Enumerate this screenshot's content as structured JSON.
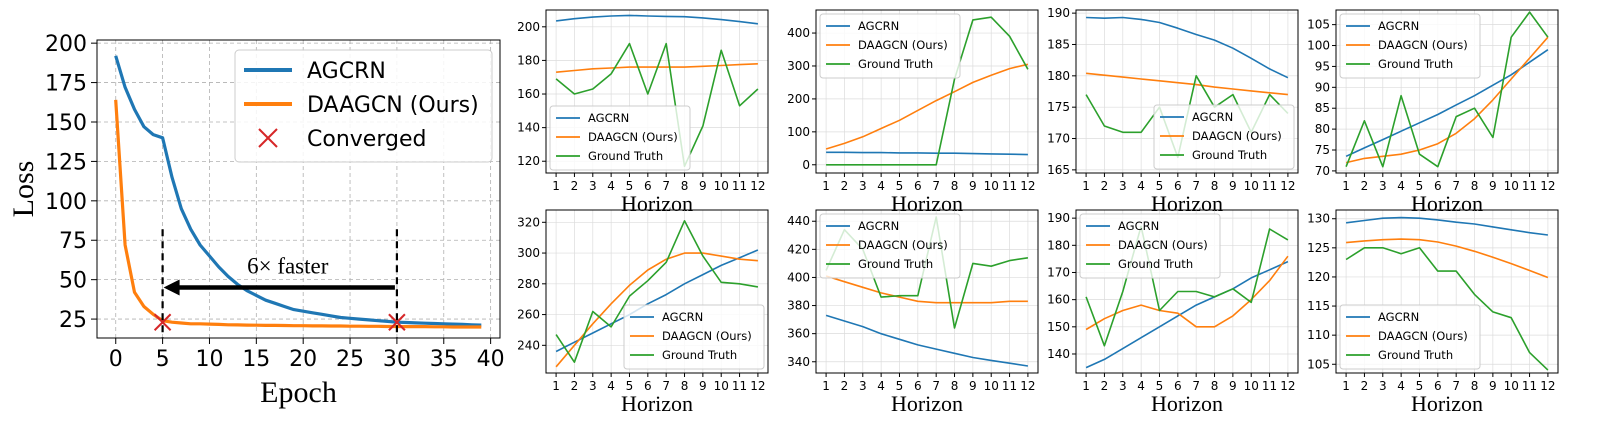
{
  "colors": {
    "agcrn": "#1f77b4",
    "daagcn": "#ff7f0e",
    "truth": "#2ca02c",
    "converged": "#d62728",
    "grid": "#b0b0b0"
  },
  "chart_data": [
    {
      "type": "line",
      "xlabel": "Epoch",
      "ylabel": "Loss",
      "xlim": [
        -2,
        41
      ],
      "ylim": [
        13,
        202
      ],
      "xticks": [
        0,
        5,
        10,
        15,
        20,
        25,
        30,
        35,
        40
      ],
      "yticks": [
        25,
        50,
        75,
        100,
        125,
        150,
        175,
        200
      ],
      "grid": "dashed",
      "legend": "top-right",
      "legend_entries": [
        "AGCRN",
        "DAAGCN (Ours)",
        "Converged"
      ],
      "x": [
        0,
        1,
        2,
        3,
        4,
        5,
        6,
        7,
        8,
        9,
        10,
        11,
        12,
        13,
        14,
        15,
        16,
        17,
        18,
        19,
        20,
        21,
        22,
        23,
        24,
        25,
        26,
        27,
        28,
        29,
        30,
        31,
        32,
        33,
        34,
        35,
        36,
        37,
        38,
        39
      ],
      "series": [
        {
          "name": "AGCRN",
          "values": [
            192,
            172,
            158,
            147,
            142,
            140,
            115,
            95,
            82,
            72,
            65,
            58,
            52,
            47,
            43,
            40,
            37,
            35,
            33,
            31,
            30,
            29,
            28,
            27,
            26,
            25.5,
            25,
            24.5,
            24,
            23.5,
            23,
            22.8,
            22.6,
            22.4,
            22.2,
            22,
            21.8,
            21.6,
            21.4,
            21.2
          ]
        },
        {
          "name": "DAAGCN (Ours)",
          "values": [
            164,
            72,
            42,
            33,
            28,
            24,
            23,
            22.5,
            22,
            22,
            21.8,
            21.6,
            21.4,
            21.3,
            21.2,
            21.1,
            21,
            21,
            20.9,
            20.8,
            20.8,
            20.7,
            20.7,
            20.6,
            20.6,
            20.5,
            20.5,
            20.4,
            20.4,
            20.3,
            20.3,
            20.2,
            20.2,
            20.2,
            20.1,
            20.1,
            20,
            20,
            20,
            20
          ]
        }
      ],
      "converged_points": [
        {
          "x": 5,
          "y": 23
        },
        {
          "x": 30,
          "y": 23
        }
      ],
      "annotation": {
        "text": "6× faster",
        "from_epoch": 30,
        "to_epoch": 5,
        "arrow_y": 45,
        "vline_top": 82
      }
    },
    {
      "type": "line",
      "xlabel": "Horizon",
      "legend": "center-left",
      "x": [
        1,
        2,
        3,
        4,
        5,
        6,
        7,
        8,
        9,
        10,
        11,
        12
      ],
      "ylim": [
        113,
        210
      ],
      "yticks": [
        120,
        140,
        160,
        180,
        200
      ],
      "series": [
        {
          "name": "AGCRN",
          "values": [
            203.5,
            204.8,
            205.8,
            206.4,
            206.8,
            206.4,
            206.2,
            206.0,
            205.3,
            204.3,
            203.1,
            201.8
          ]
        },
        {
          "name": "DAAGCN (Ours)",
          "values": [
            173,
            174,
            175,
            175.5,
            176,
            176,
            176,
            176,
            176.5,
            177,
            177.5,
            178
          ]
        },
        {
          "name": "Ground Truth",
          "values": [
            169,
            160,
            163,
            172,
            190,
            160,
            190,
            117,
            141,
            186,
            153,
            163
          ]
        }
      ]
    },
    {
      "type": "line",
      "xlabel": "Horizon",
      "legend": "top-left",
      "x": [
        1,
        2,
        3,
        4,
        5,
        6,
        7,
        8,
        9,
        10,
        11,
        12
      ],
      "ylim": [
        -25,
        470
      ],
      "yticks": [
        0,
        100,
        200,
        300,
        400
      ],
      "series": [
        {
          "name": "AGCRN",
          "values": [
            38,
            38,
            37,
            37,
            36,
            36,
            35,
            35,
            34,
            33,
            32,
            31
          ]
        },
        {
          "name": "DAAGCN (Ours)",
          "values": [
            48,
            65,
            85,
            110,
            135,
            165,
            195,
            222,
            250,
            272,
            292,
            305
          ]
        },
        {
          "name": "Ground Truth",
          "values": [
            0,
            0,
            0,
            0,
            0,
            0,
            0,
            260,
            440,
            448,
            390,
            290
          ]
        }
      ]
    },
    {
      "type": "line",
      "xlabel": "Horizon",
      "legend": "bottom-right",
      "x": [
        1,
        2,
        3,
        4,
        5,
        6,
        7,
        8,
        9,
        10,
        11,
        12
      ],
      "ylim": [
        164.5,
        190.5
      ],
      "yticks": [
        165,
        170,
        175,
        180,
        185,
        190
      ],
      "series": [
        {
          "name": "AGCRN",
          "values": [
            189.3,
            189.2,
            189.3,
            189.0,
            188.5,
            187.6,
            186.6,
            185.7,
            184.4,
            182.8,
            181.1,
            179.7
          ]
        },
        {
          "name": "DAAGCN (Ours)",
          "values": [
            180.4,
            180.1,
            179.8,
            179.5,
            179.2,
            178.9,
            178.6,
            178.2,
            177.9,
            177.6,
            177.3,
            177.0
          ]
        },
        {
          "name": "Ground Truth",
          "values": [
            177,
            172,
            171,
            171,
            175,
            167,
            180,
            175,
            177,
            171,
            177,
            174
          ]
        }
      ]
    },
    {
      "type": "line",
      "xlabel": "Horizon",
      "legend": "top-left",
      "x": [
        1,
        2,
        3,
        4,
        5,
        6,
        7,
        8,
        9,
        10,
        11,
        12
      ],
      "ylim": [
        69.5,
        108.5
      ],
      "yticks": [
        70,
        75,
        80,
        85,
        90,
        95,
        100,
        105
      ],
      "series": [
        {
          "name": "AGCRN",
          "values": [
            73.5,
            75.5,
            77.5,
            79.5,
            81.5,
            83.5,
            85.8,
            88.0,
            90.5,
            93.0,
            96.0,
            99.0
          ]
        },
        {
          "name": "DAAGCN (Ours)",
          "values": [
            72,
            73,
            73.5,
            74,
            75,
            76.5,
            79,
            82.5,
            87,
            92,
            97,
            102
          ]
        },
        {
          "name": "Ground Truth",
          "values": [
            71,
            82,
            71,
            88,
            74,
            71,
            83,
            85,
            78,
            102,
            108,
            102
          ]
        }
      ]
    },
    {
      "type": "line",
      "xlabel": "Horizon",
      "legend": "bottom-right",
      "x": [
        1,
        2,
        3,
        4,
        5,
        6,
        7,
        8,
        9,
        10,
        11,
        12
      ],
      "ylim": [
        222,
        328
      ],
      "yticks": [
        240,
        260,
        280,
        300,
        320
      ],
      "series": [
        {
          "name": "AGCRN",
          "values": [
            236,
            242,
            248,
            254,
            260,
            267,
            273,
            280,
            286,
            292,
            297,
            302
          ]
        },
        {
          "name": "DAAGCN (Ours)",
          "values": [
            226,
            240,
            254,
            267,
            279,
            289,
            296,
            300,
            300,
            298,
            296,
            295
          ]
        },
        {
          "name": "Ground Truth",
          "values": [
            247,
            229,
            262,
            252,
            272,
            282,
            294,
            321,
            298,
            281,
            280,
            278
          ]
        }
      ]
    },
    {
      "type": "line",
      "xlabel": "Horizon",
      "legend": "top-left",
      "x": [
        1,
        2,
        3,
        4,
        5,
        6,
        7,
        8,
        9,
        10,
        11,
        12
      ],
      "ylim": [
        332,
        448
      ],
      "yticks": [
        340,
        360,
        380,
        400,
        420,
        440
      ],
      "series": [
        {
          "name": "AGCRN",
          "values": [
            373,
            369,
            365,
            360,
            356,
            352,
            349,
            346,
            343,
            341,
            339,
            337
          ]
        },
        {
          "name": "DAAGCN (Ours)",
          "values": [
            401,
            397,
            393,
            389,
            386,
            383,
            382,
            382,
            382,
            382,
            383,
            383
          ]
        },
        {
          "name": "Ground Truth",
          "values": [
            405,
            434,
            420,
            386,
            387,
            387,
            443,
            364,
            410,
            408,
            412,
            414
          ]
        }
      ]
    },
    {
      "type": "line",
      "xlabel": "Horizon",
      "legend": "top-left",
      "x": [
        1,
        2,
        3,
        4,
        5,
        6,
        7,
        8,
        9,
        10,
        11,
        12
      ],
      "ylim": [
        133,
        193
      ],
      "yticks": [
        140,
        150,
        160,
        170,
        180,
        190
      ],
      "series": [
        {
          "name": "AGCRN",
          "values": [
            135,
            138,
            142,
            146,
            150,
            154,
            158,
            161,
            164,
            168,
            171,
            174
          ]
        },
        {
          "name": "DAAGCN (Ours)",
          "values": [
            149,
            153,
            156,
            158,
            156,
            155,
            150,
            150,
            154,
            160,
            167,
            176
          ]
        },
        {
          "name": "Ground Truth",
          "values": [
            161,
            143,
            163,
            187,
            156,
            163,
            163,
            161,
            164,
            159,
            186,
            182
          ]
        }
      ]
    },
    {
      "type": "line",
      "xlabel": "Horizon",
      "legend": "bottom-left",
      "x": [
        1,
        2,
        3,
        4,
        5,
        6,
        7,
        8,
        9,
        10,
        11,
        12
      ],
      "ylim": [
        103.5,
        131.5
      ],
      "yticks": [
        105,
        110,
        115,
        120,
        125,
        130
      ],
      "series": [
        {
          "name": "AGCRN",
          "values": [
            129.3,
            129.7,
            130.1,
            130.2,
            130.1,
            129.8,
            129.4,
            129.1,
            128.6,
            128.1,
            127.6,
            127.2
          ]
        },
        {
          "name": "DAAGCN (Ours)",
          "values": [
            125.9,
            126.2,
            126.4,
            126.5,
            126.4,
            126.0,
            125.3,
            124.4,
            123.4,
            122.3,
            121.1,
            119.9
          ]
        },
        {
          "name": "Ground Truth",
          "values": [
            123,
            125,
            125,
            124,
            125,
            121,
            121,
            117,
            114,
            113,
            107,
            104
          ]
        }
      ]
    }
  ]
}
